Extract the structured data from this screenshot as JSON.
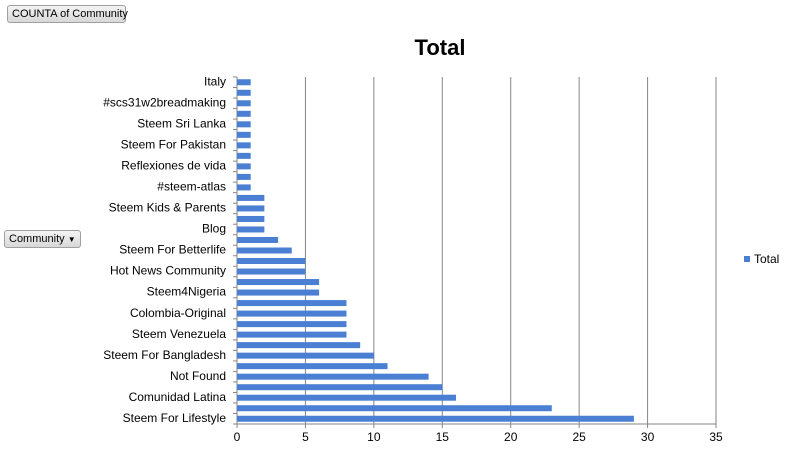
{
  "buttons": {
    "value_field": "COUNTA of Community",
    "row_field": "Community"
  },
  "chart_data": {
    "type": "bar",
    "orientation": "horizontal",
    "title": "Total",
    "categories": [
      "Italy",
      null,
      "#scs31w2breadmaking",
      null,
      "Steem Sri Lanka",
      null,
      "Steem For Pakistan",
      null,
      "Reflexiones de vida",
      null,
      "#steem-atlas",
      null,
      "Steem Kids & Parents",
      null,
      "Blog",
      null,
      "Steem For Betterlife",
      null,
      "Hot News Community",
      null,
      "Steem4Nigeria",
      null,
      "Colombia-Original",
      null,
      "Steem Venezuela",
      null,
      "Steem For Bangladesh",
      null,
      "Not Found",
      null,
      "Comunidad Latina",
      null,
      "Steem For Lifestyle"
    ],
    "series": [
      {
        "name": "Total",
        "color": "#4a7fd4",
        "values": [
          1,
          1,
          1,
          1,
          1,
          1,
          1,
          1,
          1,
          1,
          1,
          2,
          2,
          2,
          2,
          3,
          4,
          5,
          5,
          6,
          6,
          8,
          8,
          8,
          8,
          9,
          10,
          11,
          14,
          15,
          16,
          23,
          29
        ]
      }
    ],
    "xlim": [
      0,
      35
    ],
    "xticks": [
      0,
      5,
      10,
      15,
      20,
      25,
      30,
      35
    ],
    "grid": true,
    "legend": "right"
  }
}
